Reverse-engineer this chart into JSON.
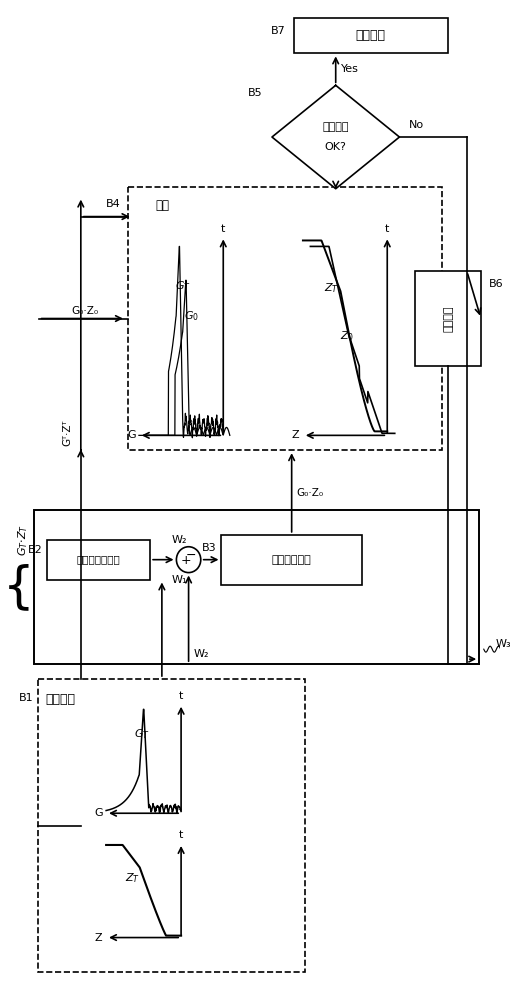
{
  "bg_color": "#ffffff",
  "B1_label": "B1",
  "B1_title": "目标波形",
  "B2_label": "B2",
  "B2_text": "制控入力生成部",
  "B3_label": "B3",
  "B3_text": "浮动路径制御",
  "B4_label": "B4",
  "B4_text": "比较",
  "B5_label": "B5",
  "B5_text": "精度判定\nOK?",
  "B6_label": "B6",
  "B6_text": "误差运算",
  "B7_label": "B7",
  "B7_text": "试验开始",
  "yes_text": "Yes",
  "no_text": "No",
  "W1_text": "W₁",
  "W2_text": "W₂",
  "W3_text": "W₃",
  "GT_ZT_text": "Gᵀ·Zᵀ",
  "G0_Z0_text": "G₀·Z₀"
}
